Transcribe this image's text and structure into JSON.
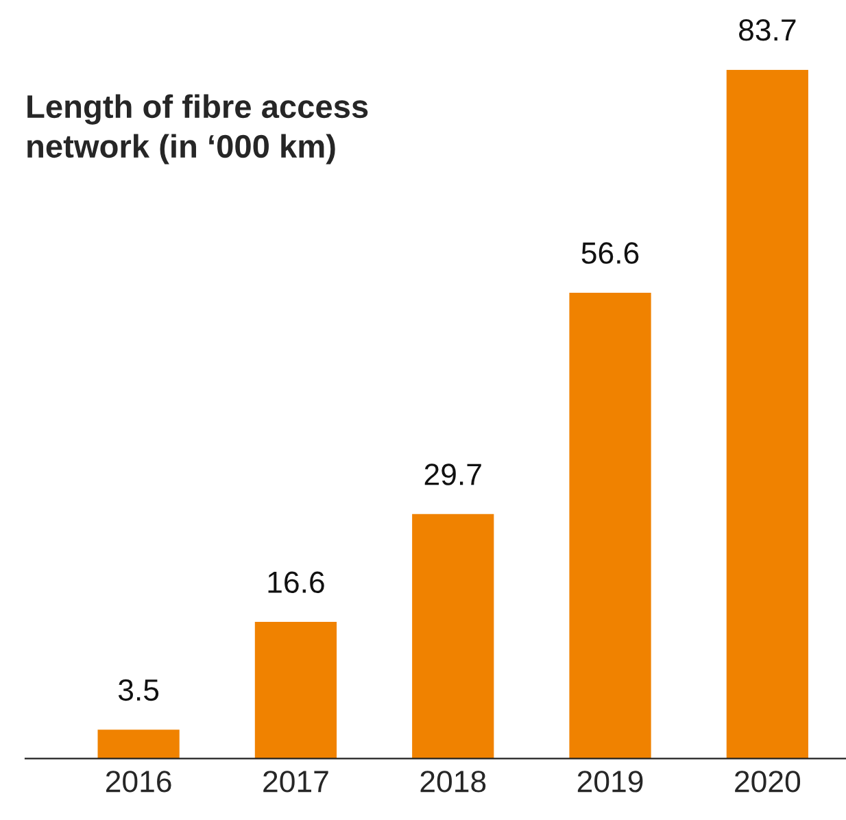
{
  "chart_data": {
    "type": "bar",
    "title": "Length of fibre access\nnetwork (in ‘000 km)",
    "categories": [
      "2016",
      "2017",
      "2018",
      "2019",
      "2020"
    ],
    "values": [
      3.5,
      16.6,
      29.7,
      56.6,
      83.7
    ],
    "color": "#f08200",
    "data_labels": true
  }
}
